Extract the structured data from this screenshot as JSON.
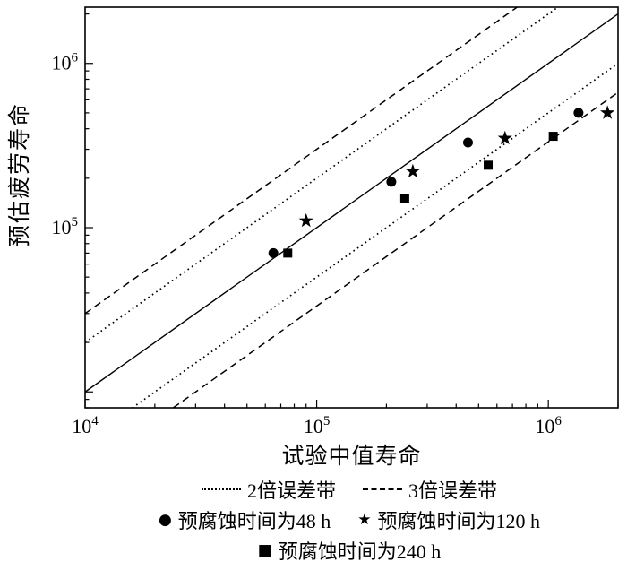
{
  "colors": {
    "foreground": "#000000",
    "background": "#ffffff"
  },
  "chart_data": {
    "type": "scatter",
    "title": "",
    "xlabel": "试验中值寿命",
    "ylabel": "预估疲劳寿命",
    "x_scale": "log",
    "y_scale": "log",
    "xlim": [
      10000,
      2000000
    ],
    "ylim": [
      8000,
      2200000
    ],
    "grid": false,
    "x_ticks": [
      {
        "base": "10",
        "exp": "4",
        "value": 10000
      },
      {
        "base": "10",
        "exp": "5",
        "value": 100000
      },
      {
        "base": "10",
        "exp": "6",
        "value": 1000000
      }
    ],
    "y_ticks": [
      {
        "base": "10",
        "exp": "5",
        "value": 100000
      },
      {
        "base": "10",
        "exp": "6",
        "value": 1000000
      }
    ],
    "reference_lines": [
      {
        "name": "equality",
        "label": "",
        "factor": 1,
        "style": "solid"
      },
      {
        "name": "2x-upper",
        "label": "2倍误差带",
        "factor": 2,
        "style": "dotted"
      },
      {
        "name": "2x-lower",
        "label": "2倍误差带",
        "factor": 0.5,
        "style": "dotted"
      },
      {
        "name": "3x-upper",
        "label": "3倍误差带",
        "factor": 3,
        "style": "dashed"
      },
      {
        "name": "3x-lower",
        "label": "3倍误差带",
        "factor": 0.3333,
        "style": "dashed"
      }
    ],
    "series": [
      {
        "name": "预腐蚀时间为48 h",
        "marker": "circle",
        "points": [
          [
            65000,
            70000
          ],
          [
            210000,
            190000
          ],
          [
            450000,
            330000
          ],
          [
            1350000,
            500000
          ]
        ]
      },
      {
        "name": "预腐蚀时间为120 h",
        "marker": "star",
        "points": [
          [
            90000,
            110000
          ],
          [
            260000,
            220000
          ],
          [
            650000,
            350000
          ],
          [
            1800000,
            500000
          ]
        ]
      },
      {
        "name": "预腐蚀时间为240 h",
        "marker": "square",
        "points": [
          [
            75000,
            70000
          ],
          [
            240000,
            150000
          ],
          [
            550000,
            240000
          ],
          [
            1050000,
            360000
          ]
        ]
      }
    ]
  },
  "legend": {
    "items": [
      {
        "type": "line",
        "style": "dotted",
        "label": "2倍误差带"
      },
      {
        "type": "line",
        "style": "dashed",
        "label": "3倍误差带"
      },
      {
        "type": "marker",
        "glyph": "●",
        "label": "预腐蚀时间为48 h"
      },
      {
        "type": "marker",
        "glyph": "★",
        "label": "预腐蚀时间为120 h"
      },
      {
        "type": "marker",
        "glyph": "■",
        "label": "预腐蚀时间为240 h"
      }
    ]
  }
}
